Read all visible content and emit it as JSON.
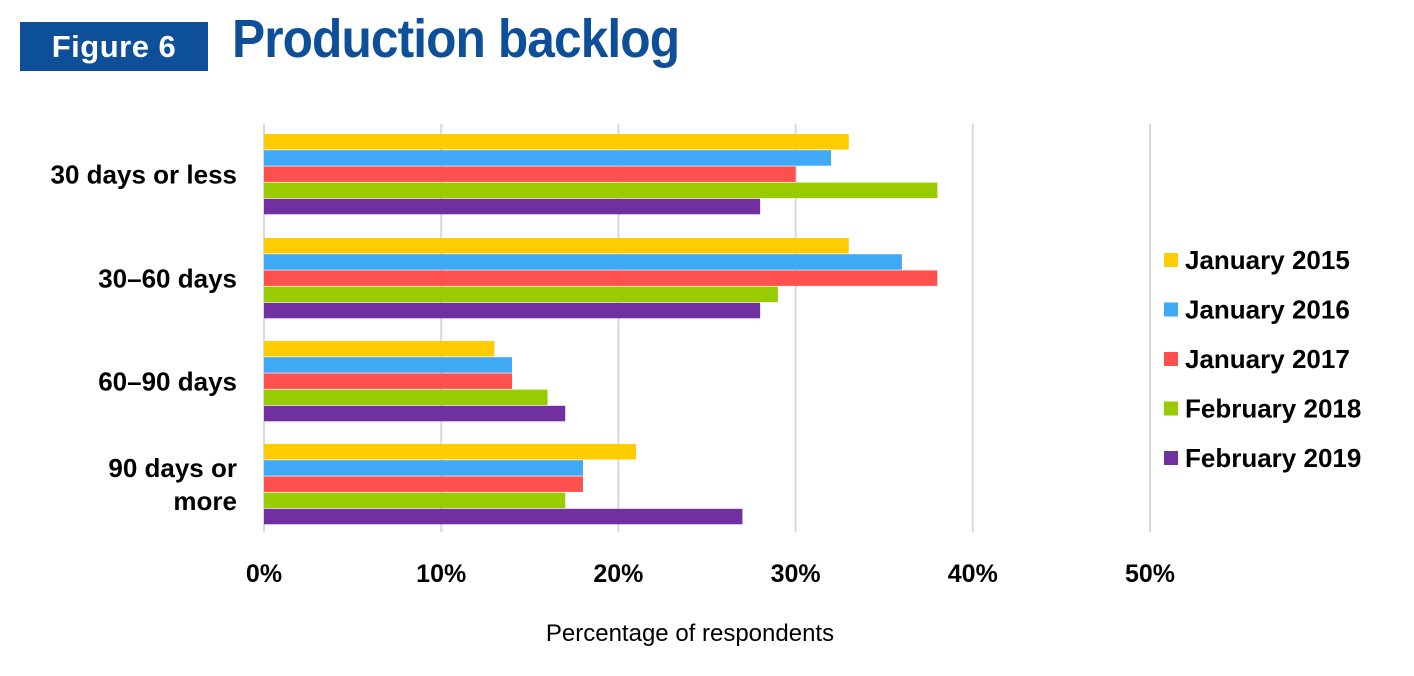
{
  "header": {
    "figure_label": "Figure 6",
    "title": "Production backlog"
  },
  "chart_data": {
    "type": "bar",
    "orientation": "horizontal",
    "title": "Production backlog",
    "xlabel": "Percentage of respondents",
    "ylabel": "",
    "xlim": [
      0,
      50
    ],
    "x_ticks": [
      "0%",
      "10%",
      "20%",
      "30%",
      "40%",
      "50%"
    ],
    "grid": true,
    "legend_position": "right",
    "categories": [
      "30 days or less",
      "30–60 days",
      "60–90 days",
      "90 days or more"
    ],
    "category_label_lines": [
      [
        "30 days or less"
      ],
      [
        "30–60 days"
      ],
      [
        "60–90 days"
      ],
      [
        "90 days or",
        "more"
      ]
    ],
    "series": [
      {
        "name": "January 2015",
        "color": "#ffcc00",
        "values": [
          33,
          33,
          13,
          21
        ]
      },
      {
        "name": "January 2016",
        "color": "#3fa9f5",
        "values": [
          32,
          36,
          14,
          18
        ]
      },
      {
        "name": "January 2017",
        "color": "#ff5050",
        "values": [
          30,
          38,
          14,
          18
        ]
      },
      {
        "name": "February 2018",
        "color": "#99cc00",
        "values": [
          38,
          29,
          16,
          17
        ]
      },
      {
        "name": "February 2019",
        "color": "#7030a0",
        "values": [
          28,
          28,
          17,
          27
        ]
      }
    ]
  }
}
